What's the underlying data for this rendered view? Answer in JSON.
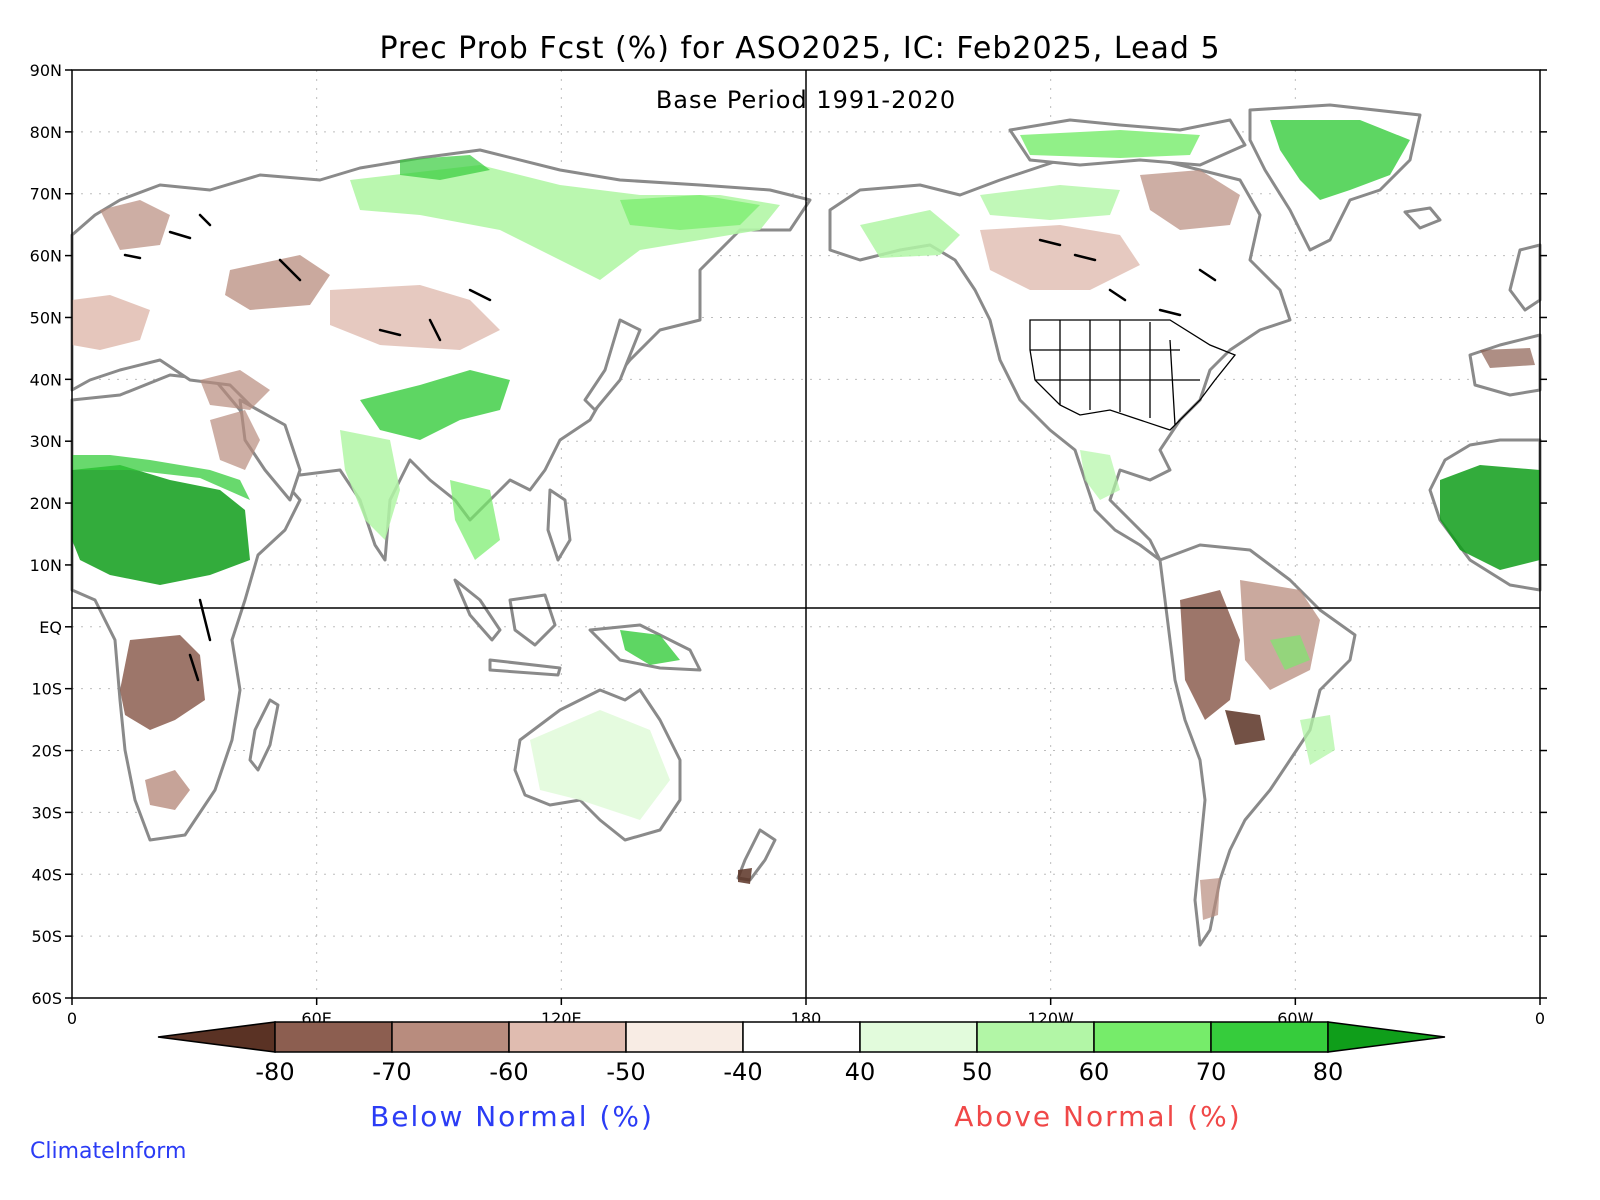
{
  "title": "Prec Prob Fcst (%) for ASO2025, IC: Feb2025, Lead 5",
  "subtitle": "Base Period 1991-2020",
  "y_axis_labels": [
    "90N",
    "80N",
    "70N",
    "60N",
    "50N",
    "40N",
    "30N",
    "20N",
    "10N",
    "EQ",
    "10S",
    "20S",
    "30S",
    "40S",
    "50S",
    "60S"
  ],
  "x_axis_labels": [
    "0",
    "60E",
    "120E",
    "180",
    "120W",
    "60W",
    "0"
  ],
  "colorbar": {
    "tick_labels": [
      "-80",
      "-70",
      "-60",
      "-50",
      "-40",
      "40",
      "50",
      "60",
      "70",
      "80"
    ],
    "below_label": "Below Normal (%)",
    "above_label": "Above Normal (%)",
    "below_label_color": "#2b3cf5",
    "above_label_color": "#f04848",
    "colors": [
      "#5a3224",
      "#8c5e50",
      "#b88c7e",
      "#e0bcb0",
      "#f8ece4",
      "#ffffff",
      "#e2fbdc",
      "#b2f6a6",
      "#76ec6a",
      "#36cc3c",
      "#0f9e1a"
    ]
  },
  "credit": "ClimateInform",
  "credit_color": "#2b3cf5",
  "colors": {
    "coastline": "#8a8a8a",
    "frame": "#000000",
    "gridline": "#bdbdbd"
  }
}
